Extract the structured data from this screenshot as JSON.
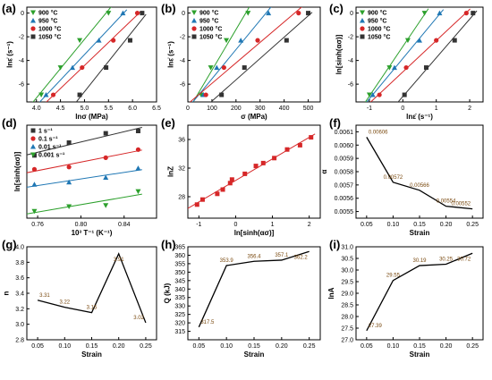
{
  "figure": {
    "panels": [
      "(a)",
      "(b)",
      "(c)",
      "(d)",
      "(e)",
      "(f)",
      "(g)",
      "(h)",
      "(i)"
    ]
  },
  "chart_data": [
    {
      "id": "a",
      "type": "scatter",
      "label": "(a)",
      "xlabel": "lnσ (MPa)",
      "ylabel": "lnε̇ (s⁻¹)",
      "xlim": [
        3.8,
        6.5
      ],
      "ylim": [
        -7.5,
        0.5
      ],
      "xticks": [
        4.0,
        4.5,
        5.0,
        5.5,
        6.0,
        6.5
      ],
      "xticklabels": [
        "4.0",
        "4.5",
        "5.0",
        "5.5",
        "6.0",
        "6.5"
      ],
      "yticks": [
        -6,
        -4,
        -2,
        0
      ],
      "yticklabels": [
        "-6",
        "-4",
        "-2",
        "0"
      ],
      "legend": "top-left",
      "series": [
        {
          "name": "900 °C",
          "color": "#2ca02c",
          "marker": "tri-down",
          "x": [
            4.1,
            4.5,
            4.9,
            5.5
          ],
          "y": [
            -6.9,
            -4.6,
            -2.3,
            0.0
          ]
        },
        {
          "name": "950 °C",
          "color": "#1f77b4",
          "marker": "tri-up",
          "x": [
            4.2,
            4.75,
            5.3,
            5.8
          ],
          "y": [
            -6.9,
            -4.6,
            -2.3,
            0.0
          ]
        },
        {
          "name": "1000 °C",
          "color": "#d62728",
          "marker": "circle",
          "x": [
            4.35,
            4.95,
            5.6,
            6.1
          ],
          "y": [
            -6.9,
            -4.6,
            -2.3,
            0.0
          ]
        },
        {
          "name": "1050 °C",
          "color": "#333333",
          "marker": "square",
          "x": [
            4.9,
            5.45,
            5.95,
            6.2
          ],
          "y": [
            -6.9,
            -4.6,
            -2.3,
            0.0
          ]
        }
      ]
    },
    {
      "id": "b",
      "type": "scatter",
      "label": "(b)",
      "xlabel": "σ (MPa)",
      "ylabel": "lnε̇ (s⁻¹)",
      "xlim": [
        0,
        550
      ],
      "ylim": [
        -7.5,
        0.5
      ],
      "xticks": [
        0,
        100,
        200,
        300,
        400,
        500
      ],
      "xticklabels": [
        "0",
        "100",
        "200",
        "300",
        "400",
        "500"
      ],
      "yticks": [
        -6,
        -4,
        -2,
        0
      ],
      "yticklabels": [
        "-6",
        "-4",
        "-2",
        "0"
      ],
      "legend": "top-left",
      "series": [
        {
          "name": "900 °C",
          "color": "#2ca02c",
          "marker": "tri-down",
          "x": [
            55,
            95,
            160,
            250
          ],
          "y": [
            -6.9,
            -4.6,
            -2.3,
            0.0
          ]
        },
        {
          "name": "950 °C",
          "color": "#1f77b4",
          "marker": "tri-up",
          "x": [
            65,
            120,
            220,
            335
          ],
          "y": [
            -6.9,
            -4.6,
            -2.3,
            0.0
          ]
        },
        {
          "name": "1000 °C",
          "color": "#d62728",
          "marker": "circle",
          "x": [
            75,
            150,
            290,
            460
          ],
          "y": [
            -6.9,
            -4.6,
            -2.3,
            0.0
          ]
        },
        {
          "name": "1050 °C",
          "color": "#333333",
          "marker": "square",
          "x": [
            140,
            235,
            410,
            500
          ],
          "y": [
            -6.9,
            -4.6,
            -2.3,
            0.0
          ]
        }
      ]
    },
    {
      "id": "c",
      "type": "scatter",
      "label": "(c)",
      "xlabel": "lnε̇ (s⁻¹)",
      "ylabel": "ln[sinh(ασ)]",
      "xlim": [
        -1.4,
        2.4
      ],
      "ylim": [
        -7.5,
        0.5
      ],
      "xticks": [
        -1,
        0,
        1,
        2
      ],
      "xticklabels": [
        "-1",
        "0",
        "1",
        "2"
      ],
      "yticks": [
        -6,
        -4,
        -2,
        0
      ],
      "yticklabels": [
        "-6",
        "-4",
        "-2",
        "0"
      ],
      "legend": "top-left",
      "series": [
        {
          "name": "900 °C",
          "color": "#2ca02c",
          "marker": "tri-down",
          "x": [
            -1.0,
            -0.4,
            0.15,
            0.65
          ],
          "y": [
            -6.9,
            -4.6,
            -2.3,
            0.0
          ]
        },
        {
          "name": "950 °C",
          "color": "#1f77b4",
          "marker": "tri-up",
          "x": [
            -0.9,
            -0.25,
            0.5,
            1.1
          ],
          "y": [
            -6.9,
            -4.6,
            -2.3,
            0.0
          ]
        },
        {
          "name": "1000 °C",
          "color": "#d62728",
          "marker": "circle",
          "x": [
            -0.7,
            0.1,
            1.0,
            1.9
          ],
          "y": [
            -6.9,
            -4.6,
            -2.3,
            0.0
          ]
        },
        {
          "name": "1050 °C",
          "color": "#333333",
          "marker": "square",
          "x": [
            0.05,
            0.7,
            1.55,
            2.1
          ],
          "y": [
            -6.9,
            -4.6,
            -2.3,
            0.0
          ]
        }
      ]
    },
    {
      "id": "d",
      "type": "scatter",
      "label": "(d)",
      "xlabel": "10³ T⁻¹ (K⁻¹)",
      "ylabel": "ln[sinh(ασ)]",
      "xlim": [
        0.75,
        0.87
      ],
      "ylim": [
        -7.5,
        0.5
      ],
      "xticks": [
        0.76,
        0.8,
        0.84
      ],
      "xticklabels": [
        "0.76",
        "0.80",
        "0.84"
      ],
      "yticks": [],
      "yticklabels": [],
      "legend": "top-left",
      "series": [
        {
          "name": "1 s⁻¹",
          "color": "#333333",
          "marker": "square",
          "x": [
            0.757,
            0.789,
            0.823,
            0.853
          ],
          "y": [
            -2.1,
            -1.0,
            -0.2,
            0.0
          ]
        },
        {
          "name": "0.1 s⁻¹",
          "color": "#d62728",
          "marker": "circle",
          "x": [
            0.757,
            0.789,
            0.823,
            0.853
          ],
          "y": [
            -3.3,
            -3.1,
            -2.3,
            -1.6
          ]
        },
        {
          "name": "0.01 s⁻¹",
          "color": "#1f77b4",
          "marker": "tri-up",
          "x": [
            0.757,
            0.789,
            0.823,
            0.853
          ],
          "y": [
            -4.6,
            -4.4,
            -4.0,
            -3.2
          ]
        },
        {
          "name": "0.001 s⁻¹",
          "color": "#2ca02c",
          "marker": "tri-down",
          "x": [
            0.757,
            0.789,
            0.823,
            0.853
          ],
          "y": [
            -6.9,
            -6.5,
            -6.4,
            -5.2
          ]
        }
      ]
    },
    {
      "id": "e",
      "type": "scatter",
      "label": "(e)",
      "xlabel": "ln[sinh(ασ)]",
      "ylabel": "lnZ",
      "xlim": [
        -1.3,
        2.3
      ],
      "ylim": [
        25,
        38
      ],
      "xticks": [
        -1,
        0,
        1,
        2
      ],
      "xticklabels": [
        "-1",
        "0",
        "1",
        "2"
      ],
      "yticks": [
        28,
        32,
        36
      ],
      "yticklabels": [
        "28",
        "32",
        "36"
      ],
      "series": [
        {
          "name": "",
          "color": "#d62728",
          "marker": "square",
          "x": [
            -1.05,
            -0.9,
            -0.5,
            -0.35,
            -0.15,
            -0.1,
            0.25,
            0.55,
            0.75,
            1.05,
            1.4,
            1.75,
            2.05
          ],
          "y": [
            26.9,
            27.6,
            28.4,
            29.0,
            29.9,
            30.4,
            31.2,
            32.3,
            32.7,
            33.4,
            34.6,
            35.2,
            36.3
          ]
        }
      ]
    },
    {
      "id": "f",
      "type": "line",
      "label": "(f)",
      "xlabel": "Strain",
      "ylabel": "α",
      "xlim": [
        0.03,
        0.27
      ],
      "ylim": [
        0.00545,
        0.00615
      ],
      "xticks": [
        0.05,
        0.1,
        0.15,
        0.2,
        0.25
      ],
      "xticklabels": [
        "0.05",
        "0.10",
        "0.15",
        "0.20",
        "0.25"
      ],
      "yticks": [
        0.0055,
        0.0056,
        0.0057,
        0.0058,
        0.0059,
        0.006,
        0.0061
      ],
      "yticklabels": [
        "0.0055",
        "0.0056",
        "0.0057",
        "0.0058",
        "0.0059",
        "0.0060",
        "0.0061"
      ],
      "x": [
        0.05,
        0.1,
        0.15,
        0.2,
        0.25
      ],
      "y": [
        0.00606,
        0.00572,
        0.00566,
        0.00554,
        0.00552
      ],
      "data_labels": [
        "0.00606",
        "0.00572",
        "0.00566",
        "0.00554",
        "0.00552"
      ]
    },
    {
      "id": "g",
      "type": "line",
      "label": "(g)",
      "xlabel": "Strain",
      "ylabel": "n",
      "xlim": [
        0.03,
        0.27
      ],
      "ylim": [
        2.8,
        4.0
      ],
      "xticks": [
        0.05,
        0.1,
        0.15,
        0.2,
        0.25
      ],
      "xticklabels": [
        "0.05",
        "0.10",
        "0.15",
        "0.20",
        "0.25"
      ],
      "yticks": [
        2.8,
        3.0,
        3.2,
        3.4,
        3.6,
        3.8,
        4.0
      ],
      "yticklabels": [
        "2.8",
        "3.0",
        "3.2",
        "3.4",
        "3.6",
        "3.8",
        "4.0"
      ],
      "x": [
        0.05,
        0.1,
        0.15,
        0.2,
        0.25
      ],
      "y": [
        3.31,
        3.22,
        3.15,
        3.91,
        3.02
      ],
      "data_labels": [
        "3.31",
        "3.22",
        "3.15",
        "3.91",
        "3.02"
      ]
    },
    {
      "id": "h",
      "type": "line",
      "label": "(h)",
      "xlabel": "Strain",
      "ylabel": "Q (kJ)",
      "xlim": [
        0.03,
        0.27
      ],
      "ylim": [
        310,
        365
      ],
      "xticks": [
        0.05,
        0.1,
        0.15,
        0.2,
        0.25
      ],
      "xticklabels": [
        "0.05",
        "0.10",
        "0.15",
        "0.20",
        "0.25"
      ],
      "yticks": [
        315,
        320,
        325,
        330,
        335,
        340,
        345,
        350,
        355,
        360,
        365
      ],
      "yticklabels": [
        "315",
        "320",
        "325",
        "330",
        "335",
        "340",
        "345",
        "350",
        "355",
        "360",
        "365"
      ],
      "x": [
        0.05,
        0.1,
        0.15,
        0.2,
        0.25
      ],
      "y": [
        317.5,
        353.9,
        356.4,
        357.1,
        362.2
      ],
      "data_labels": [
        "317.5",
        "353.9",
        "356.4",
        "357.1",
        "362.2"
      ]
    },
    {
      "id": "i",
      "type": "line",
      "label": "(i)",
      "xlabel": "Strain",
      "ylabel": "lnA",
      "xlim": [
        0.03,
        0.27
      ],
      "ylim": [
        27.0,
        31.0
      ],
      "xticks": [
        0.05,
        0.1,
        0.15,
        0.2,
        0.25
      ],
      "xticklabels": [
        "0.05",
        "0.10",
        "0.15",
        "0.20",
        "0.25"
      ],
      "yticks": [
        27.0,
        27.5,
        28.0,
        28.5,
        29.0,
        29.5,
        30.0,
        30.5,
        31.0
      ],
      "yticklabels": [
        "27.0",
        "27.5",
        "28.0",
        "28.5",
        "29.0",
        "29.5",
        "30.0",
        "30.5",
        "31.0"
      ],
      "x": [
        0.05,
        0.1,
        0.15,
        0.2,
        0.25
      ],
      "y": [
        27.39,
        29.55,
        30.19,
        30.25,
        30.72
      ],
      "data_labels": [
        "27.39",
        "29.55",
        "30.19",
        "30.25",
        "30.72"
      ]
    }
  ]
}
